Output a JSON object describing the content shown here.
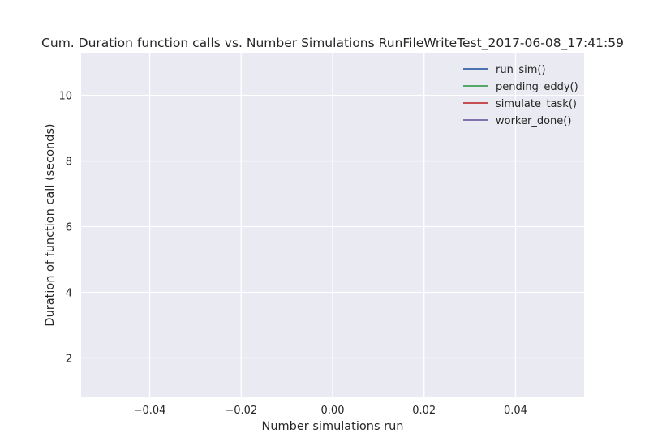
{
  "chart_data": {
    "type": "line",
    "title": "Cum. Duration function calls vs. Number Simulations RunFileWriteTest_2017-06-08_17:41:59",
    "xlabel": "Number simulations run",
    "ylabel": "Duration of function call (seconds)",
    "xlim": [
      -0.055,
      0.055
    ],
    "ylim": [
      0.8,
      11.3
    ],
    "x_ticks": [
      -0.04,
      -0.02,
      0.0,
      0.02,
      0.04
    ],
    "x_tick_labels": [
      "−0.04",
      "−0.02",
      "0.00",
      "0.02",
      "0.04"
    ],
    "y_ticks": [
      2,
      4,
      6,
      8,
      10
    ],
    "y_tick_labels": [
      "2",
      "4",
      "6",
      "8",
      "10"
    ],
    "grid": true,
    "legend_position": "upper-right",
    "series": [
      {
        "name": "run_sim()",
        "color": "#4c72b0",
        "x": [],
        "y": []
      },
      {
        "name": "pending_eddy()",
        "color": "#55a868",
        "x": [],
        "y": []
      },
      {
        "name": "simulate_task()",
        "color": "#c44e52",
        "x": [],
        "y": []
      },
      {
        "name": "worker_done()",
        "color": "#8172b2",
        "x": [],
        "y": []
      }
    ],
    "colors": {
      "plot_background": "#eaeaf2",
      "grid": "#ffffff",
      "text": "#262626"
    }
  }
}
